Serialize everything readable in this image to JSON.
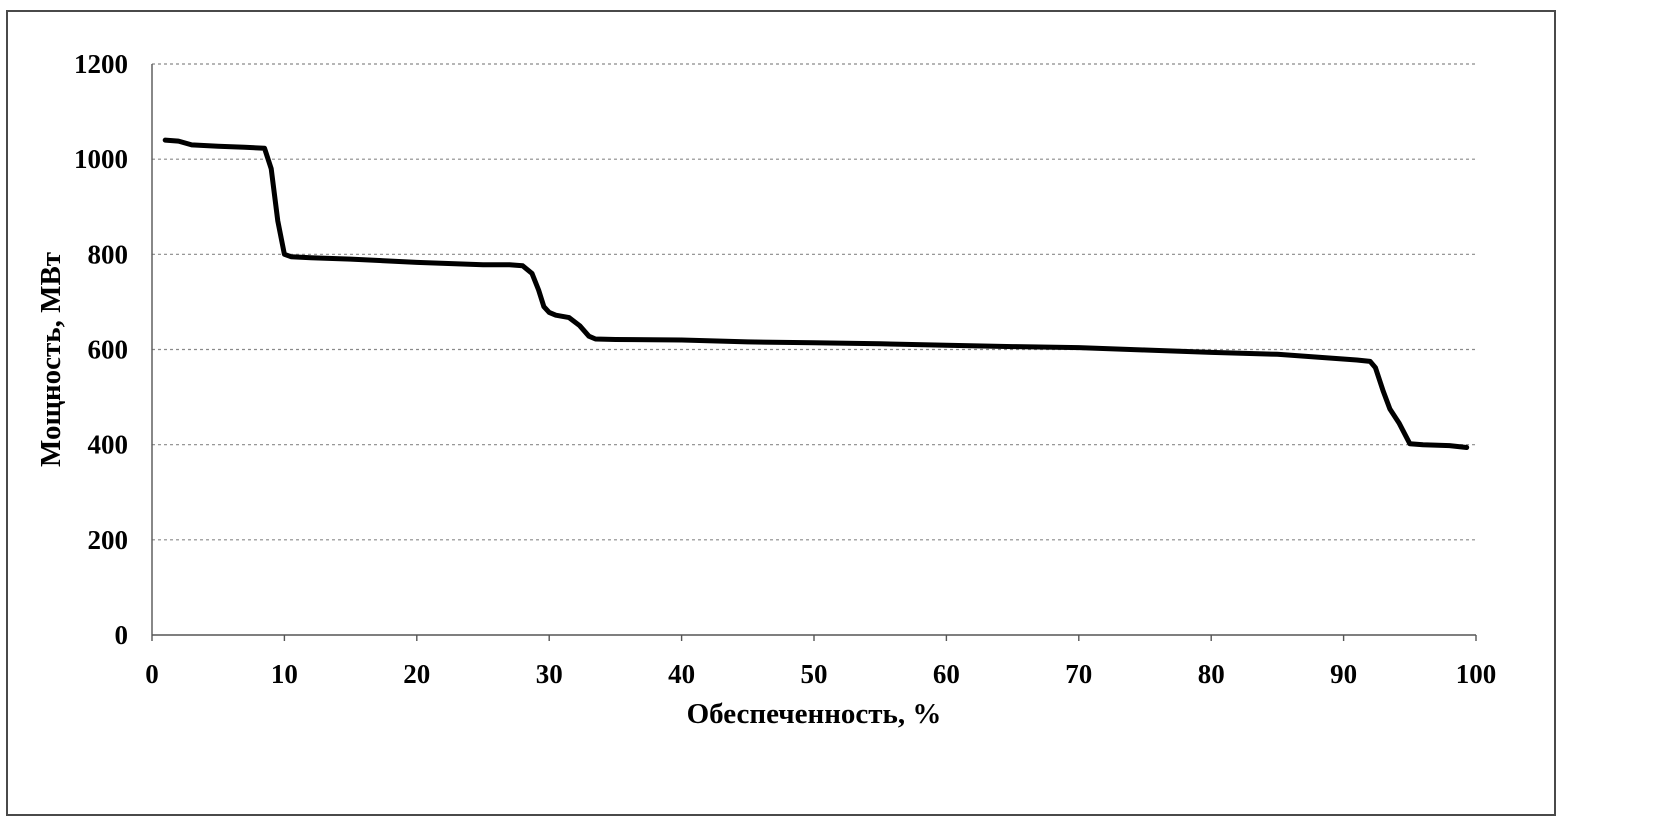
{
  "chart_data": {
    "type": "line",
    "title": "",
    "xlabel": "Обеспеченность, %",
    "ylabel": "Мощность, МВт",
    "xlim": [
      0,
      100
    ],
    "ylim": [
      0,
      1200
    ],
    "x_ticks": [
      "0",
      "10",
      "20",
      "30",
      "40",
      "50",
      "60",
      "70",
      "80",
      "90",
      "100"
    ],
    "y_ticks": [
      "0",
      "200",
      "400",
      "600",
      "800",
      "1000",
      "1200"
    ],
    "grid": true,
    "legend": "none",
    "line_color": "#000000",
    "series": [
      {
        "x": [
          1,
          2,
          3,
          5,
          7,
          8.5,
          9,
          9.5,
          10,
          10.5,
          12,
          15,
          20,
          25,
          27,
          28,
          28.7,
          29.2,
          29.6,
          30,
          30.5,
          31.5,
          32.3,
          33,
          33.5,
          35,
          40,
          45,
          50,
          55,
          60,
          65,
          70,
          75,
          80,
          85,
          88,
          91,
          92,
          92.4,
          93,
          93.5,
          94.2,
          95,
          96,
          98,
          99.3
        ],
        "y": [
          1040,
          1038,
          1030,
          1027,
          1025,
          1023,
          980,
          870,
          800,
          795,
          793,
          790,
          783,
          778,
          778,
          776,
          760,
          725,
          690,
          678,
          672,
          667,
          650,
          628,
          622,
          621,
          620,
          616,
          614,
          612,
          609,
          606,
          604,
          599,
          594,
          590,
          584,
          578,
          575,
          562,
          512,
          475,
          445,
          402,
          400,
          398,
          394
        ]
      }
    ]
  }
}
